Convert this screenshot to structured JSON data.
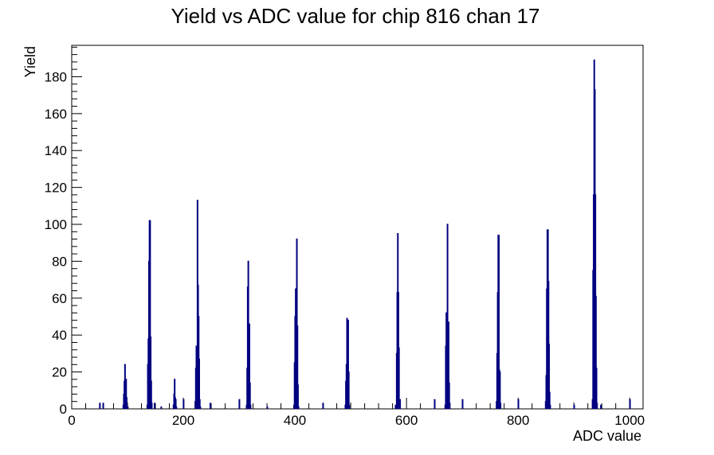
{
  "chart_data": {
    "type": "histogram",
    "title": "Yield vs ADC value for chip 816 chan 17",
    "xlabel": "ADC value",
    "ylabel": "Yield",
    "xlim": [
      0,
      1024
    ],
    "ylim": [
      0,
      197
    ],
    "x_ticks": [
      0,
      200,
      400,
      600,
      800,
      1000
    ],
    "y_ticks": [
      0,
      20,
      40,
      60,
      80,
      100,
      120,
      140,
      160,
      180
    ],
    "grid": false,
    "legend": "none",
    "line_color": "#000080",
    "bins": [
      [
        50,
        3
      ],
      [
        56,
        3
      ],
      [
        92,
        2
      ],
      [
        93,
        8
      ],
      [
        94,
        15
      ],
      [
        95,
        24
      ],
      [
        96,
        16
      ],
      [
        97,
        16
      ],
      [
        98,
        6
      ],
      [
        99,
        1
      ],
      [
        100,
        1
      ],
      [
        135,
        2
      ],
      [
        136,
        24
      ],
      [
        137,
        38
      ],
      [
        138,
        80
      ],
      [
        139,
        102
      ],
      [
        140,
        102
      ],
      [
        141,
        39
      ],
      [
        142,
        15
      ],
      [
        143,
        3
      ],
      [
        148,
        3
      ],
      [
        160,
        1
      ],
      [
        182,
        2
      ],
      [
        183,
        8
      ],
      [
        184,
        16
      ],
      [
        185,
        6
      ],
      [
        186,
        5
      ],
      [
        187,
        1
      ],
      [
        200,
        5
      ],
      [
        221,
        4
      ],
      [
        222,
        22
      ],
      [
        223,
        34
      ],
      [
        224,
        27
      ],
      [
        225,
        113
      ],
      [
        226,
        67
      ],
      [
        227,
        50
      ],
      [
        228,
        27
      ],
      [
        229,
        5
      ],
      [
        230,
        1
      ],
      [
        248,
        3
      ],
      [
        300,
        5
      ],
      [
        313,
        2
      ],
      [
        314,
        22
      ],
      [
        315,
        66
      ],
      [
        316,
        80
      ],
      [
        317,
        34
      ],
      [
        318,
        46
      ],
      [
        319,
        14
      ],
      [
        320,
        2
      ],
      [
        350,
        1
      ],
      [
        398,
        2
      ],
      [
        399,
        25
      ],
      [
        400,
        50
      ],
      [
        401,
        65
      ],
      [
        402,
        44
      ],
      [
        403,
        92
      ],
      [
        404,
        45
      ],
      [
        405,
        13
      ],
      [
        406,
        1
      ],
      [
        450,
        3
      ],
      [
        490,
        2
      ],
      [
        491,
        15
      ],
      [
        492,
        24
      ],
      [
        493,
        49
      ],
      [
        494,
        46
      ],
      [
        495,
        48
      ],
      [
        496,
        20
      ],
      [
        497,
        2
      ],
      [
        580,
        2
      ],
      [
        581,
        1
      ],
      [
        582,
        30
      ],
      [
        583,
        63
      ],
      [
        584,
        95
      ],
      [
        585,
        63
      ],
      [
        586,
        33
      ],
      [
        587,
        3
      ],
      [
        588,
        5
      ],
      [
        650,
        5
      ],
      [
        669,
        2
      ],
      [
        670,
        34
      ],
      [
        671,
        52
      ],
      [
        672,
        52
      ],
      [
        673,
        100
      ],
      [
        674,
        37
      ],
      [
        675,
        47
      ],
      [
        676,
        14
      ],
      [
        677,
        3
      ],
      [
        700,
        5
      ],
      [
        761,
        4
      ],
      [
        762,
        30
      ],
      [
        763,
        63
      ],
      [
        764,
        94
      ],
      [
        765,
        94
      ],
      [
        766,
        21
      ],
      [
        767,
        20
      ],
      [
        768,
        3
      ],
      [
        800,
        5
      ],
      [
        849,
        4
      ],
      [
        850,
        18
      ],
      [
        851,
        65
      ],
      [
        852,
        97
      ],
      [
        853,
        97
      ],
      [
        854,
        69
      ],
      [
        855,
        35
      ],
      [
        856,
        9
      ],
      [
        857,
        2
      ],
      [
        900,
        2
      ],
      [
        933,
        5
      ],
      [
        934,
        75
      ],
      [
        935,
        116
      ],
      [
        936,
        189
      ],
      [
        937,
        173
      ],
      [
        938,
        116
      ],
      [
        939,
        61
      ],
      [
        940,
        22
      ],
      [
        941,
        3
      ],
      [
        948,
        2
      ],
      [
        1000,
        5
      ]
    ]
  }
}
